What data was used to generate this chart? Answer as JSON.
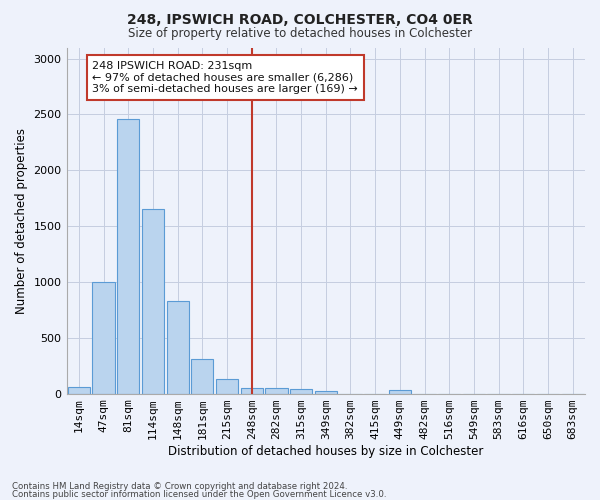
{
  "title1": "248, IPSWICH ROAD, COLCHESTER, CO4 0ER",
  "title2": "Size of property relative to detached houses in Colchester",
  "xlabel": "Distribution of detached houses by size in Colchester",
  "ylabel": "Number of detached properties",
  "categories": [
    "14sqm",
    "47sqm",
    "81sqm",
    "114sqm",
    "148sqm",
    "181sqm",
    "215sqm",
    "248sqm",
    "282sqm",
    "315sqm",
    "349sqm",
    "382sqm",
    "415sqm",
    "449sqm",
    "482sqm",
    "516sqm",
    "549sqm",
    "583sqm",
    "616sqm",
    "650sqm",
    "683sqm"
  ],
  "values": [
    60,
    1000,
    2460,
    1650,
    830,
    310,
    130,
    50,
    50,
    40,
    20,
    0,
    0,
    30,
    0,
    0,
    0,
    0,
    0,
    0,
    0
  ],
  "bar_color": "#bad4ee",
  "bar_edge_color": "#5b9bd5",
  "vline_x_index": 7,
  "vline_color": "#c0392b",
  "annotation_text": "248 IPSWICH ROAD: 231sqm\n← 97% of detached houses are smaller (6,286)\n3% of semi-detached houses are larger (169) →",
  "annotation_box_color": "#ffffff",
  "annotation_box_edge": "#c0392b",
  "ylim": [
    0,
    3100
  ],
  "yticks": [
    0,
    500,
    1000,
    1500,
    2000,
    2500,
    3000
  ],
  "footer1": "Contains HM Land Registry data © Crown copyright and database right 2024.",
  "footer2": "Contains public sector information licensed under the Open Government Licence v3.0.",
  "bg_color": "#eef2fb",
  "grid_color": "#c5cde0"
}
